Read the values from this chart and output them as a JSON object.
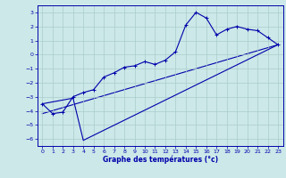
{
  "title": "Graphe des températures (°c)",
  "bg_color": "#cce8e8",
  "grid_color": "#aacccc",
  "line_color": "#0000aa",
  "xlim": [
    -0.5,
    23.5
  ],
  "ylim": [
    -6.5,
    3.5
  ],
  "yticks": [
    3,
    2,
    1,
    0,
    -1,
    -2,
    -3,
    -4,
    -5,
    -6
  ],
  "xticks": [
    0,
    1,
    2,
    3,
    4,
    5,
    6,
    7,
    8,
    9,
    10,
    11,
    12,
    13,
    14,
    15,
    16,
    17,
    18,
    19,
    20,
    21,
    22,
    23
  ],
  "curve1_x": [
    0,
    1,
    2,
    3,
    4,
    5,
    6,
    7,
    8,
    9,
    10,
    11,
    12,
    13,
    14,
    15,
    16,
    17,
    18,
    19,
    20,
    21,
    22,
    23
  ],
  "curve1_y": [
    -3.5,
    -4.2,
    -4.1,
    -3.0,
    -2.7,
    -2.5,
    -1.6,
    -1.3,
    -0.9,
    -0.8,
    -0.5,
    -0.7,
    -0.4,
    0.2,
    2.1,
    3.0,
    2.6,
    1.4,
    1.8,
    2.0,
    1.8,
    1.7,
    1.2,
    0.7
  ],
  "curve2_x": [
    0,
    3,
    4,
    23
  ],
  "curve2_y": [
    -3.5,
    -3.1,
    -6.1,
    0.7
  ],
  "curve3_x": [
    0,
    23
  ],
  "curve3_y": [
    -4.2,
    0.7
  ],
  "xlabel_fontsize": 5.5,
  "tick_fontsize": 4.5
}
